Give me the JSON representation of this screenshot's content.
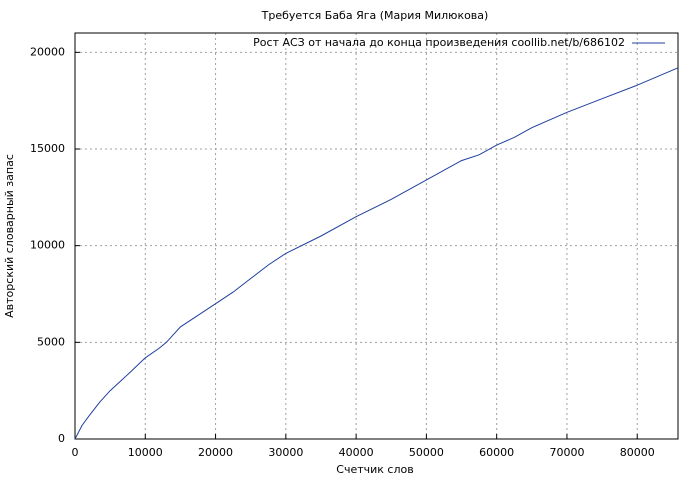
{
  "chart_data": {
    "type": "line",
    "title": "Требуется Баба Яга (Мария Милюкова)",
    "x_label": "Счетчик слов",
    "y_label": "Авторский словарный запас",
    "x": [
      0,
      1000,
      2000,
      3500,
      5000,
      6500,
      8000,
      10000,
      12000,
      13000,
      15000,
      17500,
      20000,
      22500,
      25000,
      27500,
      30000,
      35000,
      40000,
      45000,
      50000,
      55000,
      57500,
      60000,
      62500,
      65000,
      70000,
      75000,
      80000,
      85800
    ],
    "series": [
      {
        "name": "Рост АСЗ от начала до конца произведения coollib.net/b/686102",
        "color": "#1f3f9f",
        "values": [
          0,
          700,
          1200,
          1900,
          2500,
          3000,
          3500,
          4200,
          4700,
          5000,
          5800,
          6400,
          7000,
          7600,
          8300,
          9000,
          9600,
          10500,
          11500,
          12400,
          13400,
          14400,
          14700,
          15200,
          15600,
          16100,
          16900,
          17600,
          18300,
          19200
        ]
      }
    ],
    "xlim": [
      0,
      85800
    ],
    "ylim": [
      0,
      21000
    ],
    "xticks": [
      0,
      10000,
      20000,
      30000,
      40000,
      50000,
      60000,
      70000,
      80000
    ],
    "yticks": [
      0,
      5000,
      10000,
      15000,
      20000
    ],
    "grid": true,
    "legend": "top-right"
  }
}
